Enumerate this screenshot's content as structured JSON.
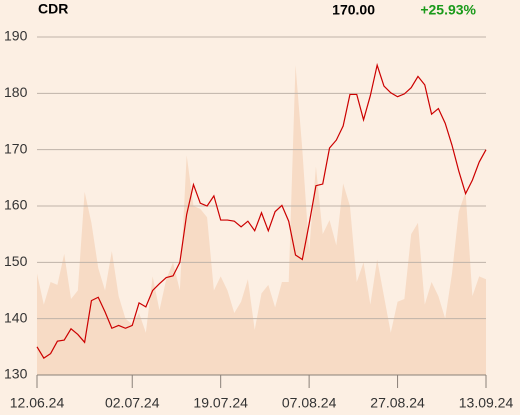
{
  "header": {
    "symbol": "CDR",
    "last": "170.00",
    "change": "+25.93%"
  },
  "chart_data": {
    "type": "line",
    "categories": [
      "12.06.24",
      null,
      null,
      null,
      null,
      null,
      null,
      null,
      null,
      null,
      null,
      null,
      null,
      null,
      "02.07.24",
      null,
      null,
      null,
      null,
      null,
      null,
      null,
      null,
      null,
      null,
      null,
      null,
      "19.07.24",
      null,
      null,
      null,
      null,
      null,
      null,
      null,
      null,
      null,
      null,
      null,
      null,
      "07.08.24",
      null,
      null,
      null,
      null,
      null,
      null,
      null,
      null,
      null,
      null,
      null,
      null,
      "27.08.24",
      null,
      null,
      null,
      null,
      null,
      null,
      null,
      null,
      null,
      null,
      null,
      null,
      "13.09.24"
    ],
    "series": [
      {
        "color": "#f7dbc5",
        "kind": "area",
        "values": [
          148,
          142.5,
          146.5,
          146,
          151.5,
          143.5,
          145,
          162.5,
          157,
          149,
          145,
          152,
          144,
          140,
          139,
          141,
          137.5,
          147.5,
          141.5,
          147,
          150,
          145,
          169,
          160,
          159.5,
          158,
          145,
          147.5,
          145,
          141,
          143,
          147,
          138,
          144.5,
          146,
          142,
          146.5,
          146.5,
          185,
          170,
          152,
          167,
          155,
          157.5,
          153,
          164,
          160,
          146.5,
          150,
          142.5,
          150.5,
          144,
          137.5,
          143,
          143.5,
          155,
          157,
          142.5,
          146.5,
          144,
          140,
          148,
          159,
          162.5,
          144,
          147.5,
          147
        ]
      },
      {
        "color": "#cc0000",
        "kind": "line",
        "values": [
          135,
          133,
          133.8,
          136,
          136.2,
          138.2,
          137.2,
          135.8,
          143.2,
          143.8,
          141.2,
          138.3,
          138.8,
          138.3,
          138.8,
          142.8,
          142.1,
          145,
          146.2,
          147.3,
          147.6,
          150,
          158.5,
          163.8,
          160.5,
          160,
          161.8,
          157.5,
          157.5,
          157.3,
          156.3,
          157.3,
          155.6,
          158.8,
          155.6,
          159,
          160.1,
          157.3,
          151.3,
          150.5,
          156.8,
          163.6,
          163.9,
          170.3,
          171.7,
          174.2,
          179.8,
          179.8,
          175.3,
          179.6,
          185,
          181.3,
          180.1,
          179.4,
          179.9,
          181,
          183,
          181.5,
          176.3,
          177.3,
          174.7,
          170.8,
          166.2,
          162.2,
          164.6,
          167.8,
          170
        ]
      }
    ],
    "ylim": [
      130,
      190
    ],
    "yticks": [
      130,
      140,
      150,
      160,
      170,
      180,
      190
    ],
    "grid": true
  }
}
